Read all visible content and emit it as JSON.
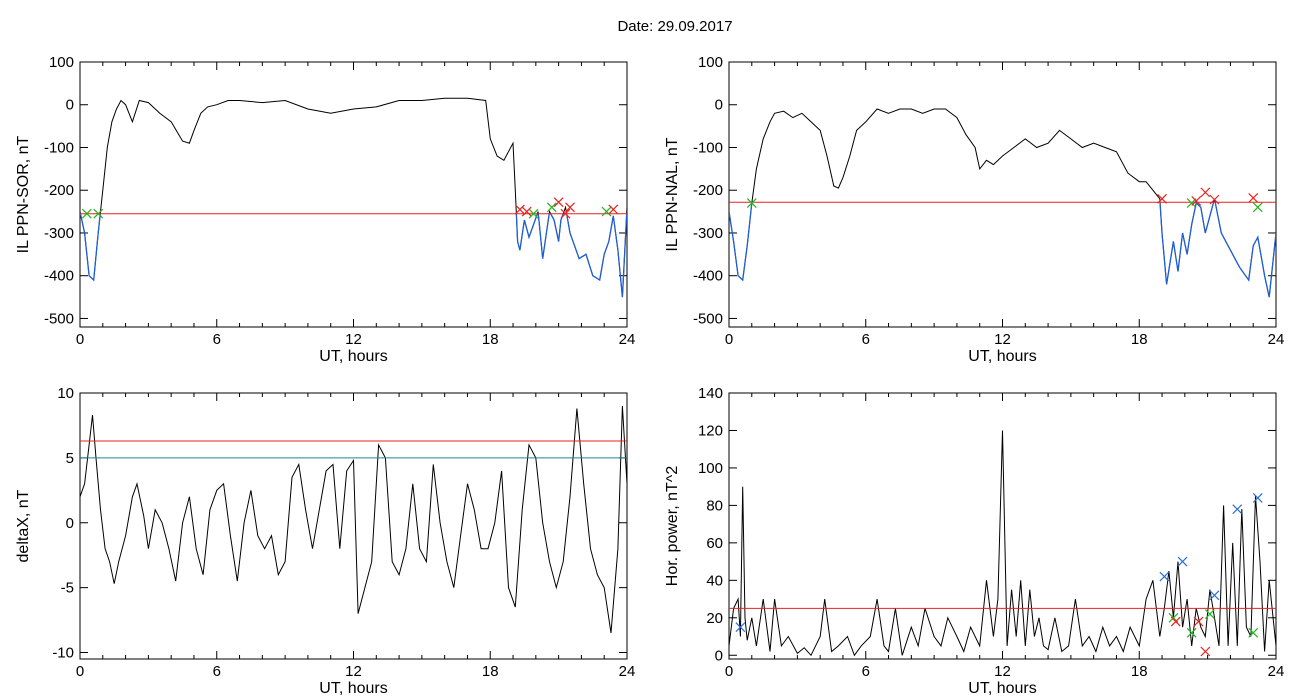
{
  "figure": {
    "title": "Date:  29.09.2017"
  },
  "colors": {
    "trace": "#000000",
    "below": "#1f5fd6",
    "threshold": "#e8221e",
    "threshold2": "#1a8a8a",
    "mark_red": "#e8221e",
    "mark_green": "#1fb51f",
    "mark_blue": "#2a6fd6"
  },
  "chart_data": [
    {
      "id": "sor",
      "type": "line",
      "xlabel": "UT, hours",
      "ylabel": "IL PPN-SOR, nT",
      "xlim": [
        0,
        24
      ],
      "ylim": [
        -520,
        100
      ],
      "xticks": [
        0,
        6,
        12,
        18,
        24
      ],
      "yticks": [
        100,
        0,
        -100,
        -200,
        -300,
        -400,
        -500
      ],
      "threshold": -255,
      "series": [
        {
          "x": [
            0,
            0.2,
            0.4,
            0.6,
            0.8,
            1.0,
            1.2,
            1.4,
            1.6,
            1.8,
            2.0,
            2.3,
            2.6,
            3.0,
            3.5,
            4.0,
            4.5,
            4.8,
            5.0,
            5.3,
            5.6,
            6.0,
            6.5,
            7.0,
            8.0,
            9.0,
            10.0,
            11.0,
            12.0,
            13.0,
            14.0,
            15.0,
            16.0,
            17.0,
            17.8,
            18.0,
            18.3,
            18.6,
            19.0,
            19.1,
            19.2,
            19.3,
            19.5,
            19.7,
            19.9,
            20.1,
            20.3,
            20.6,
            20.8,
            21.0,
            21.1,
            21.3,
            21.5,
            21.7,
            21.9,
            22.2,
            22.5,
            22.8,
            23.0,
            23.2,
            23.4,
            23.6,
            23.8,
            24.0
          ],
          "y": [
            -250,
            -300,
            -400,
            -410,
            -300,
            -200,
            -100,
            -40,
            -10,
            10,
            0,
            -40,
            10,
            5,
            -20,
            -40,
            -85,
            -90,
            -60,
            -20,
            -5,
            0,
            10,
            10,
            5,
            10,
            -10,
            -20,
            -10,
            -5,
            10,
            10,
            15,
            15,
            10,
            -80,
            -120,
            -130,
            -90,
            -200,
            -320,
            -340,
            -270,
            -310,
            -280,
            -250,
            -360,
            -250,
            -270,
            -320,
            -270,
            -240,
            -300,
            -330,
            -360,
            -350,
            -400,
            -410,
            -350,
            -320,
            -260,
            -340,
            -450,
            -240
          ]
        }
      ],
      "markers": [
        {
          "x": 0.3,
          "y": -255,
          "color": "green"
        },
        {
          "x": 0.8,
          "y": -255,
          "color": "green"
        },
        {
          "x": 19.3,
          "y": -245,
          "color": "red"
        },
        {
          "x": 19.6,
          "y": -250,
          "color": "red"
        },
        {
          "x": 19.9,
          "y": -255,
          "color": "green"
        },
        {
          "x": 20.7,
          "y": -240,
          "color": "green"
        },
        {
          "x": 21.0,
          "y": -228,
          "color": "red"
        },
        {
          "x": 21.3,
          "y": -255,
          "color": "red"
        },
        {
          "x": 21.5,
          "y": -240,
          "color": "red"
        },
        {
          "x": 23.1,
          "y": -250,
          "color": "green"
        },
        {
          "x": 23.4,
          "y": -245,
          "color": "red"
        }
      ]
    },
    {
      "id": "nal",
      "type": "line",
      "xlabel": "UT, hours",
      "ylabel": "IL PPN-NAL, nT",
      "xlim": [
        0,
        24
      ],
      "ylim": [
        -520,
        100
      ],
      "xticks": [
        0,
        6,
        12,
        18,
        24
      ],
      "yticks": [
        100,
        0,
        -100,
        -200,
        -300,
        -400,
        -500
      ],
      "threshold": -228,
      "series": [
        {
          "x": [
            0,
            0.2,
            0.4,
            0.6,
            0.8,
            1.0,
            1.2,
            1.5,
            1.8,
            2.0,
            2.4,
            2.8,
            3.2,
            3.6,
            4.0,
            4.3,
            4.6,
            4.8,
            5.0,
            5.3,
            5.6,
            6.0,
            6.5,
            7.0,
            7.5,
            8.0,
            8.5,
            9.0,
            9.5,
            10.0,
            10.4,
            10.8,
            11.0,
            11.3,
            11.6,
            12.0,
            12.5,
            13.0,
            13.5,
            14.0,
            14.5,
            15.0,
            15.5,
            16.0,
            16.5,
            17.0,
            17.5,
            18.0,
            18.3,
            18.6,
            18.9,
            19.0,
            19.2,
            19.5,
            19.7,
            19.9,
            20.1,
            20.3,
            20.5,
            20.7,
            20.9,
            21.1,
            21.3,
            21.6,
            22.0,
            22.4,
            22.8,
            23.0,
            23.2,
            23.5,
            23.7,
            24.0
          ],
          "y": [
            -250,
            -320,
            -400,
            -410,
            -330,
            -230,
            -150,
            -80,
            -40,
            -20,
            -15,
            -30,
            -20,
            -40,
            -60,
            -120,
            -190,
            -195,
            -170,
            -120,
            -60,
            -40,
            -10,
            -20,
            -10,
            -10,
            -20,
            -10,
            -10,
            -30,
            -70,
            -100,
            -150,
            -130,
            -140,
            -120,
            -100,
            -80,
            -100,
            -90,
            -60,
            -80,
            -100,
            -90,
            -100,
            -110,
            -160,
            -180,
            -180,
            -200,
            -220,
            -300,
            -420,
            -320,
            -390,
            -300,
            -350,
            -280,
            -230,
            -240,
            -300,
            -260,
            -220,
            -300,
            -340,
            -380,
            -410,
            -330,
            -310,
            -400,
            -450,
            -300
          ]
        }
      ],
      "markers": [
        {
          "x": 1.0,
          "y": -230,
          "color": "green"
        },
        {
          "x": 19.0,
          "y": -220,
          "color": "red"
        },
        {
          "x": 20.3,
          "y": -230,
          "color": "green"
        },
        {
          "x": 20.5,
          "y": -225,
          "color": "red"
        },
        {
          "x": 20.9,
          "y": -205,
          "color": "red"
        },
        {
          "x": 21.3,
          "y": -222,
          "color": "red"
        },
        {
          "x": 23.0,
          "y": -218,
          "color": "red"
        },
        {
          "x": 23.2,
          "y": -240,
          "color": "green"
        }
      ]
    },
    {
      "id": "deltax",
      "type": "line",
      "xlabel": "UT, hours",
      "ylabel": "deltaX, nT",
      "xlim": [
        0,
        24
      ],
      "ylim": [
        -10.5,
        10
      ],
      "xticks": [
        0,
        6,
        12,
        18,
        24
      ],
      "yticks": [
        10,
        5,
        0,
        -5,
        -10
      ],
      "threshold": 6.3,
      "threshold2": 5.0,
      "series": [
        {
          "x": [
            0,
            0.2,
            0.4,
            0.55,
            0.7,
            0.9,
            1.1,
            1.3,
            1.5,
            1.7,
            2.0,
            2.3,
            2.5,
            2.8,
            3.0,
            3.3,
            3.6,
            3.9,
            4.2,
            4.5,
            4.8,
            5.1,
            5.4,
            5.7,
            6.0,
            6.3,
            6.6,
            6.9,
            7.2,
            7.5,
            7.8,
            8.1,
            8.4,
            8.7,
            9.0,
            9.3,
            9.6,
            9.9,
            10.2,
            10.5,
            10.8,
            11.1,
            11.4,
            11.7,
            12.0,
            12.2,
            12.5,
            12.8,
            13.1,
            13.4,
            13.7,
            14.0,
            14.3,
            14.6,
            14.9,
            15.2,
            15.5,
            15.8,
            16.1,
            16.4,
            16.7,
            17.0,
            17.3,
            17.6,
            17.9,
            18.2,
            18.5,
            18.8,
            19.1,
            19.4,
            19.7,
            20.0,
            20.3,
            20.6,
            20.9,
            21.2,
            21.5,
            21.8,
            22.1,
            22.4,
            22.7,
            23.0,
            23.3,
            23.6,
            23.8,
            24.0
          ],
          "y": [
            2,
            3,
            6,
            8.3,
            5,
            1,
            -2,
            -3,
            -4.7,
            -3,
            -1,
            2,
            3,
            0.5,
            -2,
            1,
            0,
            -2,
            -4.5,
            0,
            2,
            -2,
            -4,
            1,
            2.5,
            3,
            -1,
            -4.5,
            0,
            2.5,
            -1,
            -2,
            -1,
            -4,
            -3,
            3.5,
            4.5,
            1,
            -2,
            1,
            4,
            4.5,
            -2,
            4,
            4.8,
            -7,
            -5,
            -3,
            6,
            5,
            -3,
            -4,
            -2,
            3,
            -2,
            -3,
            4.5,
            0,
            -3,
            -5,
            -1,
            3,
            1,
            -2,
            -2,
            0,
            4,
            -5,
            -6.5,
            1,
            6,
            5,
            0,
            -3,
            -5,
            -3,
            2,
            8.8,
            3,
            -2,
            -4,
            -5,
            -8.5,
            -2,
            9,
            3
          ]
        }
      ],
      "markers": []
    },
    {
      "id": "power",
      "type": "line",
      "xlabel": "UT, hours",
      "ylabel": "Hor. power, nT^2",
      "xlim": [
        0,
        24
      ],
      "ylim": [
        -2,
        140
      ],
      "xticks": [
        0,
        6,
        12,
        18,
        24
      ],
      "yticks": [
        140,
        120,
        100,
        80,
        60,
        40,
        20,
        0
      ],
      "threshold": 25,
      "series": [
        {
          "x": [
            0,
            0.2,
            0.4,
            0.5,
            0.6,
            0.7,
            0.8,
            1.0,
            1.2,
            1.5,
            1.8,
            2.0,
            2.3,
            2.6,
            3.0,
            3.3,
            3.6,
            4.0,
            4.2,
            4.5,
            4.8,
            5.2,
            5.5,
            5.8,
            6.2,
            6.5,
            6.8,
            7.0,
            7.3,
            7.6,
            8.0,
            8.3,
            8.6,
            9.0,
            9.3,
            9.6,
            10.0,
            10.3,
            10.6,
            11.0,
            11.3,
            11.6,
            11.8,
            12.0,
            12.2,
            12.4,
            12.6,
            12.8,
            13.0,
            13.2,
            13.4,
            13.6,
            13.8,
            14.0,
            14.3,
            14.6,
            14.9,
            15.2,
            15.5,
            15.8,
            16.1,
            16.4,
            16.7,
            17.0,
            17.3,
            17.6,
            18.0,
            18.3,
            18.6,
            18.9,
            19.1,
            19.3,
            19.5,
            19.7,
            19.9,
            20.1,
            20.3,
            20.5,
            20.7,
            20.9,
            21.1,
            21.3,
            21.5,
            21.7,
            21.9,
            22.1,
            22.3,
            22.5,
            22.7,
            22.9,
            23.1,
            23.3,
            23.5,
            23.7,
            24.0
          ],
          "y": [
            5,
            25,
            30,
            10,
            90,
            20,
            8,
            20,
            5,
            30,
            2,
            30,
            5,
            10,
            1,
            4,
            0,
            10,
            30,
            2,
            5,
            10,
            0,
            5,
            10,
            30,
            5,
            2,
            25,
            0,
            15,
            5,
            25,
            10,
            5,
            20,
            10,
            2,
            15,
            5,
            40,
            10,
            30,
            120,
            5,
            35,
            10,
            40,
            5,
            35,
            10,
            20,
            5,
            3,
            20,
            2,
            5,
            30,
            5,
            10,
            2,
            15,
            5,
            10,
            2,
            15,
            5,
            30,
            40,
            10,
            25,
            45,
            20,
            50,
            15,
            30,
            5,
            25,
            15,
            10,
            35,
            20,
            5,
            80,
            5,
            60,
            5,
            78,
            15,
            10,
            85,
            50,
            2,
            40,
            5
          ]
        }
      ],
      "markers": [
        {
          "x": 0.5,
          "y": 15,
          "color": "blue"
        },
        {
          "x": 19.1,
          "y": 42,
          "color": "blue"
        },
        {
          "x": 19.5,
          "y": 20,
          "color": "green"
        },
        {
          "x": 19.6,
          "y": 18,
          "color": "red"
        },
        {
          "x": 19.9,
          "y": 50,
          "color": "blue"
        },
        {
          "x": 20.3,
          "y": 12,
          "color": "green"
        },
        {
          "x": 20.6,
          "y": 18,
          "color": "red"
        },
        {
          "x": 20.9,
          "y": 2,
          "color": "red"
        },
        {
          "x": 21.1,
          "y": 22,
          "color": "green"
        },
        {
          "x": 21.3,
          "y": 32,
          "color": "blue"
        },
        {
          "x": 22.3,
          "y": 78,
          "color": "blue"
        },
        {
          "x": 23.0,
          "y": 12,
          "color": "green"
        },
        {
          "x": 23.2,
          "y": 84,
          "color": "blue"
        }
      ]
    }
  ]
}
